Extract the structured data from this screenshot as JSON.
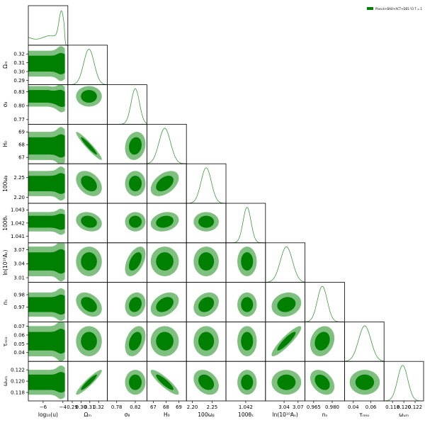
{
  "chart_data": {
    "type": "corner",
    "legend": {
      "placement": "top-right",
      "entries": [
        {
          "label": "Planck+BAO+ACT+DES Y3 T = 1",
          "color": "#008000"
        }
      ]
    },
    "colors": {
      "inner": "#008000",
      "outer": "#7fbf7f",
      "line": "#3a9a3a"
    },
    "contour_levels": [
      "68%",
      "95%"
    ],
    "parameters": [
      {
        "name": "log10u",
        "label": "log₁₀(u)",
        "range": [
          -7.5,
          -3.5
        ],
        "ticks": [
          -6,
          -4
        ],
        "tick_labels": [
          "−6",
          "−4"
        ],
        "mean": -4.1
      },
      {
        "name": "Omega_m",
        "label": "Ωₘ",
        "range": [
          0.285,
          0.33
        ],
        "ticks": [
          0.29,
          0.3,
          0.31,
          0.32
        ],
        "tick_labels": [
          "0.29",
          "0.30",
          "0.31",
          "0.32"
        ],
        "mean": 0.309,
        "sigma": 0.006
      },
      {
        "name": "sigma8",
        "label": "σ₈",
        "range": [
          0.76,
          0.845
        ],
        "ticks": [
          0.77,
          0.8,
          0.83
        ],
        "tick_labels": [
          "0.77",
          "0.80",
          "0.83"
        ],
        "x_ticks": [
          0.78,
          0.82
        ],
        "x_tick_labels": [
          "0.78",
          "0.82"
        ],
        "mean": 0.82,
        "sigma": 0.009
      },
      {
        "name": "H0",
        "label": "H₀",
        "range": [
          66.5,
          69.6
        ],
        "ticks": [
          67,
          68,
          69
        ],
        "tick_labels": [
          "67",
          "68",
          "69"
        ],
        "mean": 67.9,
        "sigma": 0.45
      },
      {
        "name": "omegab",
        "label": "100ωᵦ",
        "range": [
          2.185,
          2.285
        ],
        "ticks": [
          2.2,
          2.25
        ],
        "tick_labels": [
          "2.20",
          "2.25"
        ],
        "mean": 2.235,
        "sigma": 0.013
      },
      {
        "name": "theta",
        "label": "100θₛ",
        "range": [
          1.0405,
          1.0435
        ],
        "ticks": [
          1.041,
          1.042,
          1.043
        ],
        "tick_labels": [
          "1.041",
          "1.042",
          "1.043"
        ],
        "x_ticks": [
          1.042
        ],
        "x_tick_labels": [
          "1.042"
        ],
        "mean": 1.0421,
        "sigma": 0.0003
      },
      {
        "name": "lnAs",
        "label": "ln(10¹⁰Aₛ)",
        "range": [
          3.0,
          3.085
        ],
        "ticks": [
          3.01,
          3.04,
          3.07
        ],
        "tick_labels": [
          "3.01",
          "3.04",
          "3.07"
        ],
        "x_ticks": [
          3.04,
          3.07
        ],
        "x_tick_labels": [
          "3.04",
          "3.07"
        ],
        "mean": 3.045,
        "sigma": 0.013
      },
      {
        "name": "ns",
        "label": "nₛ",
        "range": [
          0.958,
          0.99
        ],
        "ticks": [
          0.97,
          0.98
        ],
        "tick_labels": [
          "0.97",
          "0.98"
        ],
        "x_ticks": [
          0.965,
          0.98
        ],
        "x_tick_labels": [
          "0.965",
          "0.980"
        ],
        "mean": 0.972,
        "sigma": 0.004
      },
      {
        "name": "tau",
        "label": "τᵣₑᵢₒ",
        "range": [
          0.03,
          0.075
        ],
        "ticks": [
          0.04,
          0.05,
          0.06,
          0.07
        ],
        "tick_labels": [
          "0.04",
          "0.05",
          "0.06",
          "0.07"
        ],
        "x_ticks": [
          0.04,
          0.06
        ],
        "x_tick_labels": [
          "0.04",
          "0.06"
        ],
        "mean": 0.053,
        "sigma": 0.007
      },
      {
        "name": "omegadm",
        "label": "ωᵤₘ",
        "range": [
          0.1165,
          0.1235
        ],
        "ticks": [
          0.118,
          0.12,
          0.122
        ],
        "tick_labels": [
          "0.118",
          "0.120",
          "0.122"
        ],
        "mean": 0.1198,
        "sigma": 0.0009
      }
    ]
  }
}
